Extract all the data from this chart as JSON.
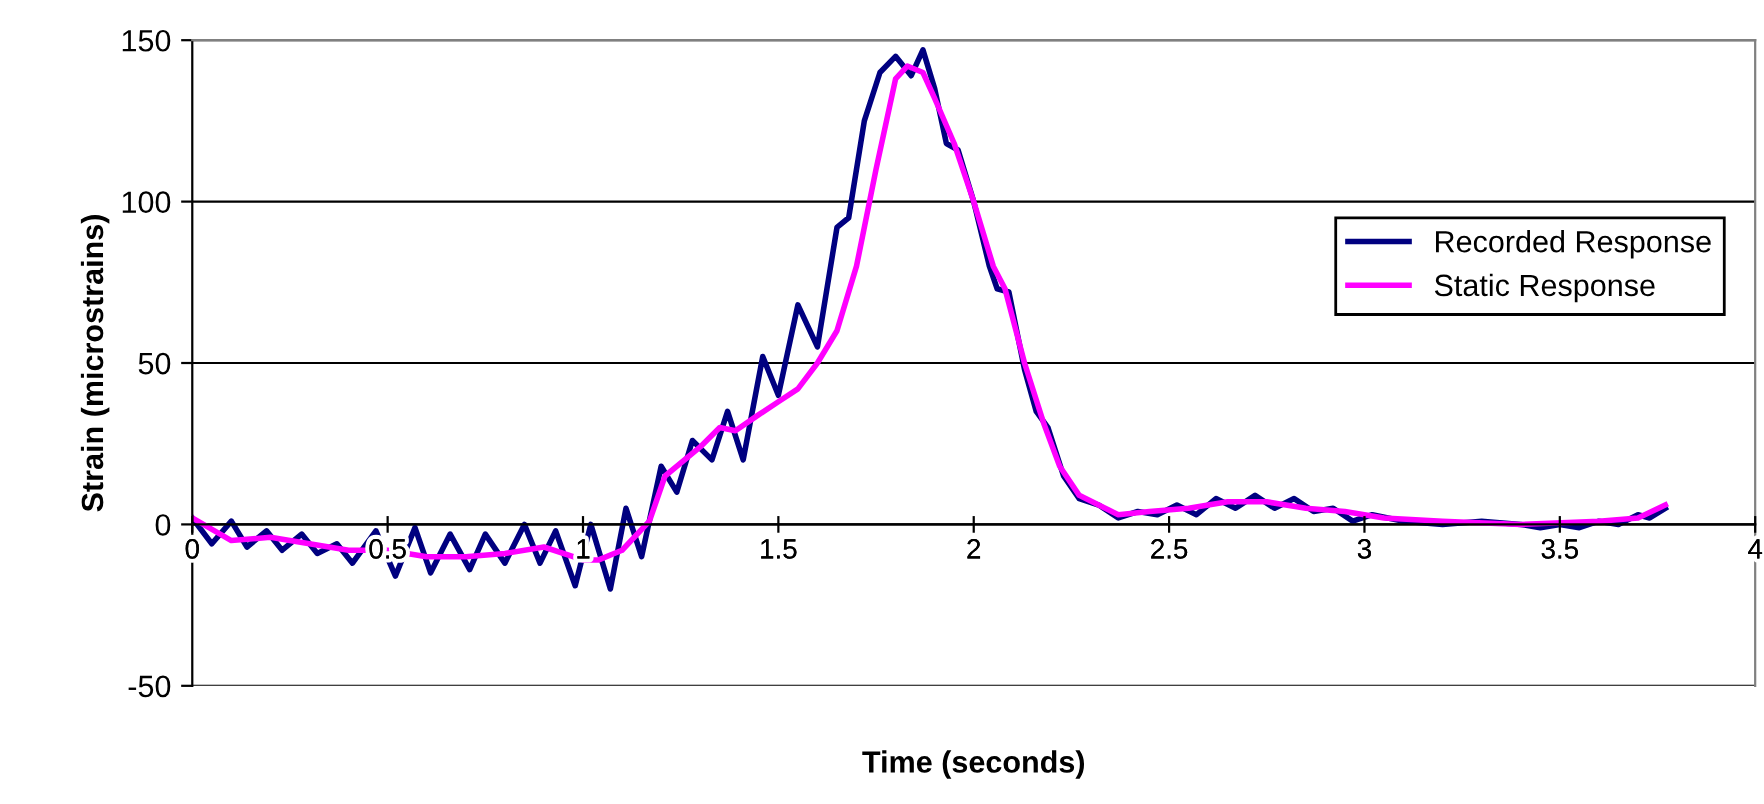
{
  "chart_data": {
    "type": "line",
    "xlabel": "Time (seconds)",
    "ylabel": "Strain (microstrains)",
    "xlim": [
      0,
      4
    ],
    "ylim": [
      -50,
      150
    ],
    "xticks": [
      0,
      0.5,
      1,
      1.5,
      2,
      2.5,
      3,
      3.5,
      4
    ],
    "yticks": [
      -50,
      0,
      50,
      100,
      150
    ],
    "grid": "y",
    "legend": "right",
    "marker": "none",
    "line_style": "solid",
    "series": [
      {
        "name": "Recorded Response",
        "color": "#000080",
        "x": [
          0,
          0.05,
          0.1,
          0.14,
          0.19,
          0.23,
          0.28,
          0.32,
          0.37,
          0.41,
          0.47,
          0.52,
          0.57,
          0.61,
          0.66,
          0.71,
          0.75,
          0.8,
          0.85,
          0.89,
          0.93,
          0.98,
          1.02,
          1.07,
          1.11,
          1.15,
          1.2,
          1.24,
          1.28,
          1.33,
          1.37,
          1.41,
          1.46,
          1.5,
          1.55,
          1.6,
          1.65,
          1.68,
          1.72,
          1.76,
          1.8,
          1.84,
          1.87,
          1.9,
          1.93,
          1.96,
          2.0,
          2.04,
          2.06,
          2.09,
          2.13,
          2.16,
          2.19,
          2.23,
          2.27,
          2.32,
          2.37,
          2.42,
          2.47,
          2.52,
          2.57,
          2.62,
          2.67,
          2.72,
          2.77,
          2.82,
          2.87,
          2.92,
          2.97,
          3.02,
          3.1,
          3.2,
          3.3,
          3.4,
          3.45,
          3.5,
          3.55,
          3.6,
          3.65,
          3.7,
          3.73,
          3.77
        ],
        "values": [
          2,
          -6,
          1,
          -7,
          -2,
          -8,
          -3,
          -9,
          -6,
          -12,
          -2,
          -16,
          -1,
          -15,
          -3,
          -14,
          -3,
          -12,
          0,
          -12,
          -2,
          -19,
          0,
          -20,
          5,
          -10,
          18,
          10,
          26,
          20,
          35,
          20,
          52,
          40,
          68,
          55,
          92,
          95,
          125,
          140,
          145,
          139,
          147,
          135,
          118,
          116,
          100,
          80,
          73,
          72,
          48,
          35,
          30,
          15,
          8,
          6,
          2,
          4,
          3,
          6,
          3,
          8,
          5,
          9,
          5,
          8,
          4,
          5,
          1,
          3,
          1,
          0,
          1,
          0,
          -1,
          0,
          -1,
          1,
          0,
          3,
          2,
          5
        ]
      },
      {
        "name": "Static Response",
        "color": "#ff00ff",
        "x": [
          0,
          0.1,
          0.2,
          0.3,
          0.4,
          0.5,
          0.6,
          0.7,
          0.8,
          0.9,
          1.0,
          1.04,
          1.1,
          1.17,
          1.21,
          1.3,
          1.35,
          1.39,
          1.45,
          1.5,
          1.55,
          1.6,
          1.65,
          1.7,
          1.75,
          1.8,
          1.83,
          1.87,
          1.9,
          1.95,
          2.0,
          2.05,
          2.08,
          2.13,
          2.18,
          2.22,
          2.27,
          2.32,
          2.37,
          2.45,
          2.55,
          2.65,
          2.75,
          2.85,
          2.95,
          3.05,
          3.2,
          3.4,
          3.6,
          3.7,
          3.77
        ],
        "values": [
          2,
          -5,
          -4,
          -6,
          -8,
          -8,
          -10,
          -10,
          -9,
          -7,
          -11,
          -11,
          -8,
          1,
          15,
          24,
          30,
          29,
          34,
          38,
          42,
          50,
          60,
          80,
          110,
          138,
          142,
          140,
          132,
          118,
          100,
          80,
          73,
          50,
          31,
          18,
          9,
          6,
          3,
          4,
          5,
          7,
          7,
          5,
          4,
          2,
          1,
          0,
          1,
          2,
          6
        ]
      }
    ]
  }
}
